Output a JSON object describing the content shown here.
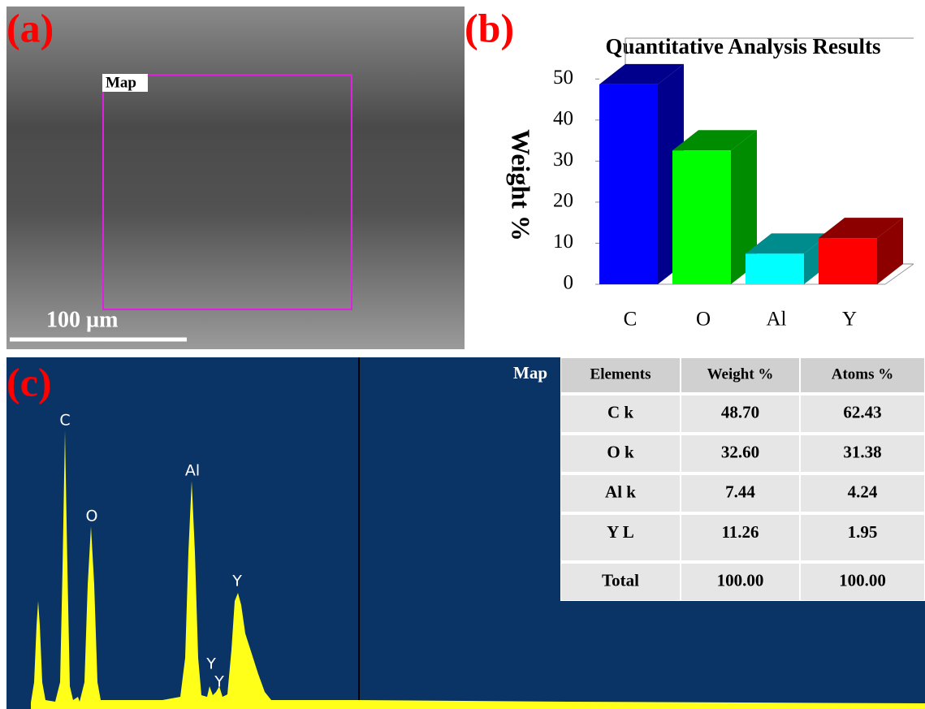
{
  "panel_labels": [
    "(a)",
    "(b)",
    "(c)"
  ],
  "sem_image": {
    "box_label": "Map",
    "scale_bar": "100 µm"
  },
  "chart_data": {
    "type": "bar",
    "title": "Quantitative Analysis Results",
    "y_label": "Weight %",
    "categories": [
      "C",
      "O",
      "Al",
      "Y"
    ],
    "values": [
      48.7,
      32.6,
      7.44,
      11.26
    ],
    "colors": [
      "#0000ff",
      "#00ff00",
      "#00ffff",
      "#ff0000"
    ],
    "ylim": [
      0,
      55
    ],
    "yticks": [
      0,
      10,
      20,
      30,
      40,
      50
    ]
  },
  "spectrum": {
    "title": "Map",
    "peak_labels": [
      "C",
      "O",
      "Al",
      "Y",
      "Y",
      "Y"
    ]
  },
  "table": {
    "header": [
      "Elements",
      "Weight %",
      "Atoms %"
    ],
    "rows": [
      [
        "C k",
        "48.70",
        "62.43"
      ],
      [
        "O k",
        "32.60",
        "31.38"
      ],
      [
        "Al k",
        "7.44",
        "4.24"
      ],
      [
        "Y L",
        "11.26",
        "1.95"
      ],
      [
        "Total",
        "100.00",
        "100.00"
      ]
    ]
  }
}
